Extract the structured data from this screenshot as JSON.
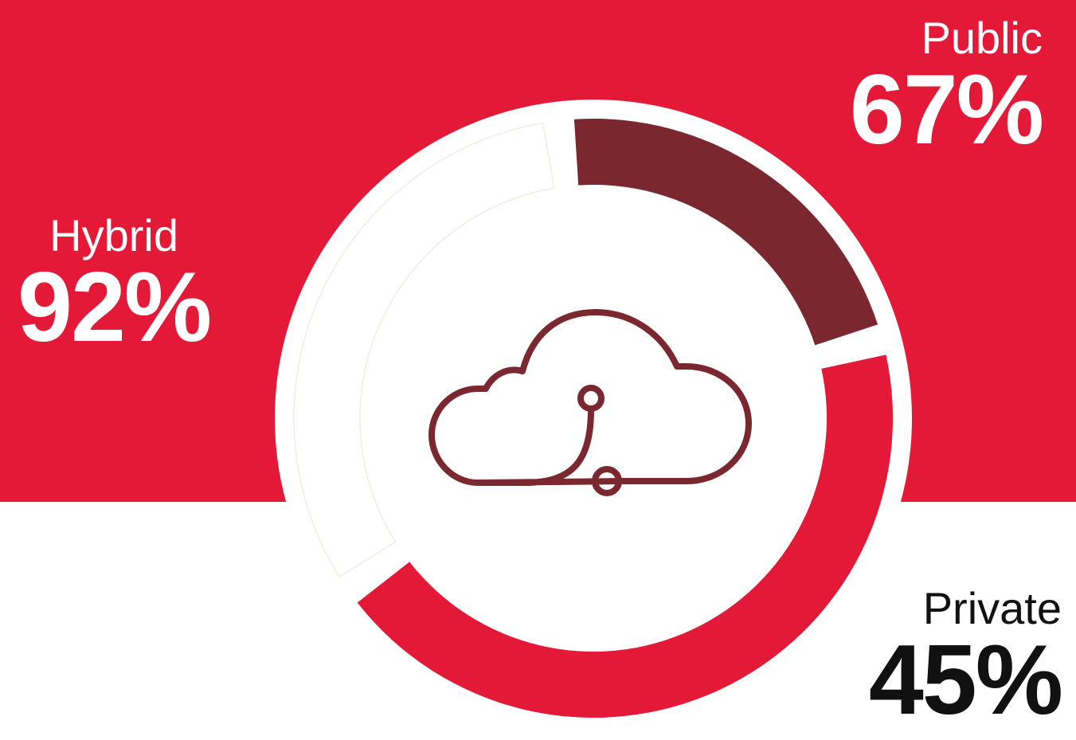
{
  "chart_data": {
    "type": "pie",
    "series": [
      {
        "name": "Public",
        "value_label": "67%",
        "value": 67,
        "color": "#ffffff"
      },
      {
        "name": "Hybrid",
        "value_label": "92%",
        "value": 92,
        "color": "#e31937"
      },
      {
        "name": "Private",
        "value_label": "45%",
        "value": 45,
        "color": "#7b2730"
      }
    ],
    "center_icon": "cloud-network-icon",
    "colors": {
      "band": "#e31937",
      "background": "#ffffff",
      "icon": "#7b2730"
    }
  }
}
